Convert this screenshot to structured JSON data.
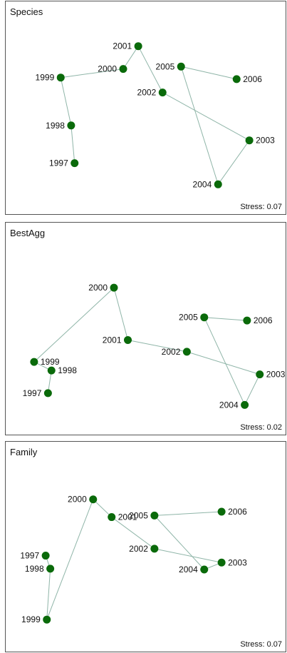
{
  "chart_data": [
    {
      "type": "scatter",
      "title": "Species",
      "stress_label": "Stress:",
      "stress": "0.07",
      "connect_order": [
        "1997",
        "1998",
        "1999",
        "2000",
        "2001",
        "2002",
        "2003",
        "2004",
        "2005",
        "2006"
      ],
      "points": [
        {
          "label": "1997",
          "x": -0.62,
          "y": -0.66
        },
        {
          "label": "1998",
          "x": -0.65,
          "y": -0.18
        },
        {
          "label": "1999",
          "x": -0.74,
          "y": 0.43
        },
        {
          "label": "2000",
          "x": -0.2,
          "y": 0.54
        },
        {
          "label": "2001",
          "x": -0.07,
          "y": 0.83
        },
        {
          "label": "2002",
          "x": 0.14,
          "y": 0.24
        },
        {
          "label": "2003",
          "x": 0.89,
          "y": -0.37
        },
        {
          "label": "2004",
          "x": 0.62,
          "y": -0.93
        },
        {
          "label": "2005",
          "x": 0.3,
          "y": 0.57
        },
        {
          "label": "2006",
          "x": 0.78,
          "y": 0.41
        }
      ]
    },
    {
      "type": "scatter",
      "title": "BestAgg",
      "stress_label": "Stress:",
      "stress": "0.02",
      "connect_order": [
        "1997",
        "1998",
        "1999",
        "2000",
        "2001",
        "2002",
        "2003",
        "2004",
        "2005",
        "2006"
      ],
      "points": [
        {
          "label": "1997",
          "x": -0.85,
          "y": -0.78
        },
        {
          "label": "1998",
          "x": -0.82,
          "y": -0.49
        },
        {
          "label": "1999",
          "x": -0.97,
          "y": -0.38
        },
        {
          "label": "2000",
          "x": -0.28,
          "y": 0.57
        },
        {
          "label": "2001",
          "x": -0.16,
          "y": -0.1
        },
        {
          "label": "2002",
          "x": 0.35,
          "y": -0.25
        },
        {
          "label": "2003",
          "x": 0.98,
          "y": -0.54
        },
        {
          "label": "2004",
          "x": 0.85,
          "y": -0.93
        },
        {
          "label": "2005",
          "x": 0.5,
          "y": 0.19
        },
        {
          "label": "2006",
          "x": 0.87,
          "y": 0.15
        }
      ]
    },
    {
      "type": "scatter",
      "title": "Family",
      "stress_label": "Stress:",
      "stress": "0.07",
      "connect_order": [
        "1997",
        "1998",
        "1999",
        "2000",
        "2001",
        "2002",
        "2003",
        "2004",
        "2005",
        "2006"
      ],
      "points": [
        {
          "label": "1997",
          "x": -0.87,
          "y": -0.07
        },
        {
          "label": "1998",
          "x": -0.83,
          "y": -0.24
        },
        {
          "label": "1999",
          "x": -0.86,
          "y": -0.9
        },
        {
          "label": "2000",
          "x": -0.46,
          "y": 0.66
        },
        {
          "label": "2001",
          "x": -0.3,
          "y": 0.43
        },
        {
          "label": "2002",
          "x": 0.07,
          "y": 0.02
        },
        {
          "label": "2003",
          "x": 0.65,
          "y": -0.16
        },
        {
          "label": "2004",
          "x": 0.5,
          "y": -0.25
        },
        {
          "label": "2005",
          "x": 0.07,
          "y": 0.45
        },
        {
          "label": "2006",
          "x": 0.65,
          "y": 0.5
        }
      ]
    }
  ],
  "colors": {
    "point": "#0a6a0a",
    "line": "#8fb5a8",
    "frame": "#555555",
    "text": "#111111"
  }
}
